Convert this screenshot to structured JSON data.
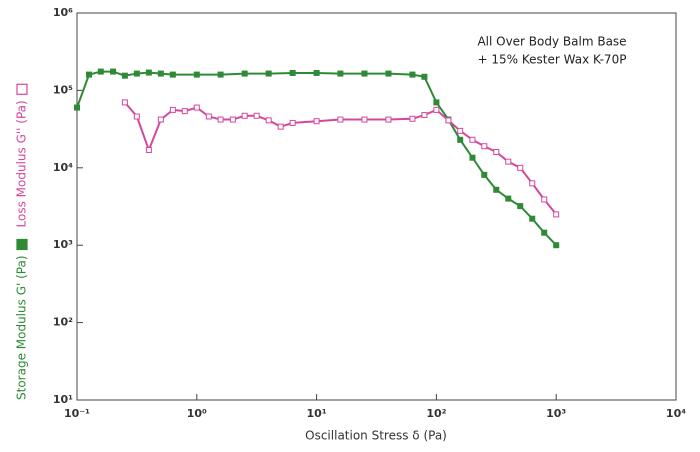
{
  "chart_data": {
    "type": "line",
    "xlabel": "Oscillation Stress δ (Pa)",
    "annotations": [
      "All Over Body Balm Base",
      "+ 15% Kester Wax K-70P"
    ],
    "xscale": "log",
    "yscale": "log",
    "grid": false,
    "xlim": [
      0.1,
      10000
    ],
    "ylim": [
      10,
      1000000
    ],
    "xticks": [
      {
        "value": 0.1,
        "label": "10⁻¹"
      },
      {
        "value": 1,
        "label": "10⁰"
      },
      {
        "value": 10,
        "label": "10¹"
      },
      {
        "value": 100,
        "label": "10²"
      },
      {
        "value": 1000,
        "label": "10³"
      },
      {
        "value": 10000,
        "label": "10⁴"
      }
    ],
    "yticks": [
      {
        "value": 10,
        "label": "10¹"
      },
      {
        "value": 100,
        "label": "10²"
      },
      {
        "value": 1000,
        "label": "10³"
      },
      {
        "value": 10000,
        "label": "10⁴"
      },
      {
        "value": 100000,
        "label": "10⁵"
      },
      {
        "value": 1000000,
        "label": "10⁶"
      }
    ],
    "series": [
      {
        "name": "Storage Modulus G' (Pa)",
        "color": "#2f8a36",
        "marker": "filled-square",
        "x": [
          0.1,
          0.126,
          0.158,
          0.2,
          0.251,
          0.316,
          0.398,
          0.501,
          0.631,
          1,
          1.58,
          2.51,
          3.98,
          6.31,
          10,
          15.8,
          25.1,
          39.8,
          63.1,
          79.4,
          100,
          126,
          158,
          200,
          251,
          316,
          398,
          501,
          631,
          794,
          1000
        ],
        "values": [
          60000,
          160000,
          175000,
          175000,
          155000,
          165000,
          170000,
          165000,
          160000,
          160000,
          160000,
          165000,
          165000,
          168000,
          168000,
          165000,
          165000,
          165000,
          160000,
          150000,
          70000,
          42000,
          23000,
          13500,
          8100,
          5200,
          4000,
          3200,
          2200,
          1450,
          1000
        ]
      },
      {
        "name": "Loss Modulus G'' (Pa)",
        "color": "#d6479b",
        "marker": "open-square",
        "x": [
          0.251,
          0.316,
          0.398,
          0.501,
          0.631,
          0.794,
          1,
          1.26,
          1.58,
          2,
          2.51,
          3.16,
          3.98,
          5.01,
          6.31,
          10,
          15.8,
          25.1,
          39.8,
          63.1,
          79.4,
          100,
          126,
          158,
          200,
          251,
          316,
          398,
          501,
          631,
          794,
          1000
        ],
        "values": [
          70000,
          46000,
          17000,
          42000,
          56000,
          54000,
          60000,
          46000,
          42000,
          42000,
          47000,
          47000,
          41000,
          34000,
          38000,
          40000,
          42000,
          42000,
          42000,
          43000,
          48000,
          56000,
          41000,
          30000,
          23000,
          19000,
          16000,
          12000,
          10000,
          6300,
          3900,
          2500
        ]
      }
    ]
  }
}
